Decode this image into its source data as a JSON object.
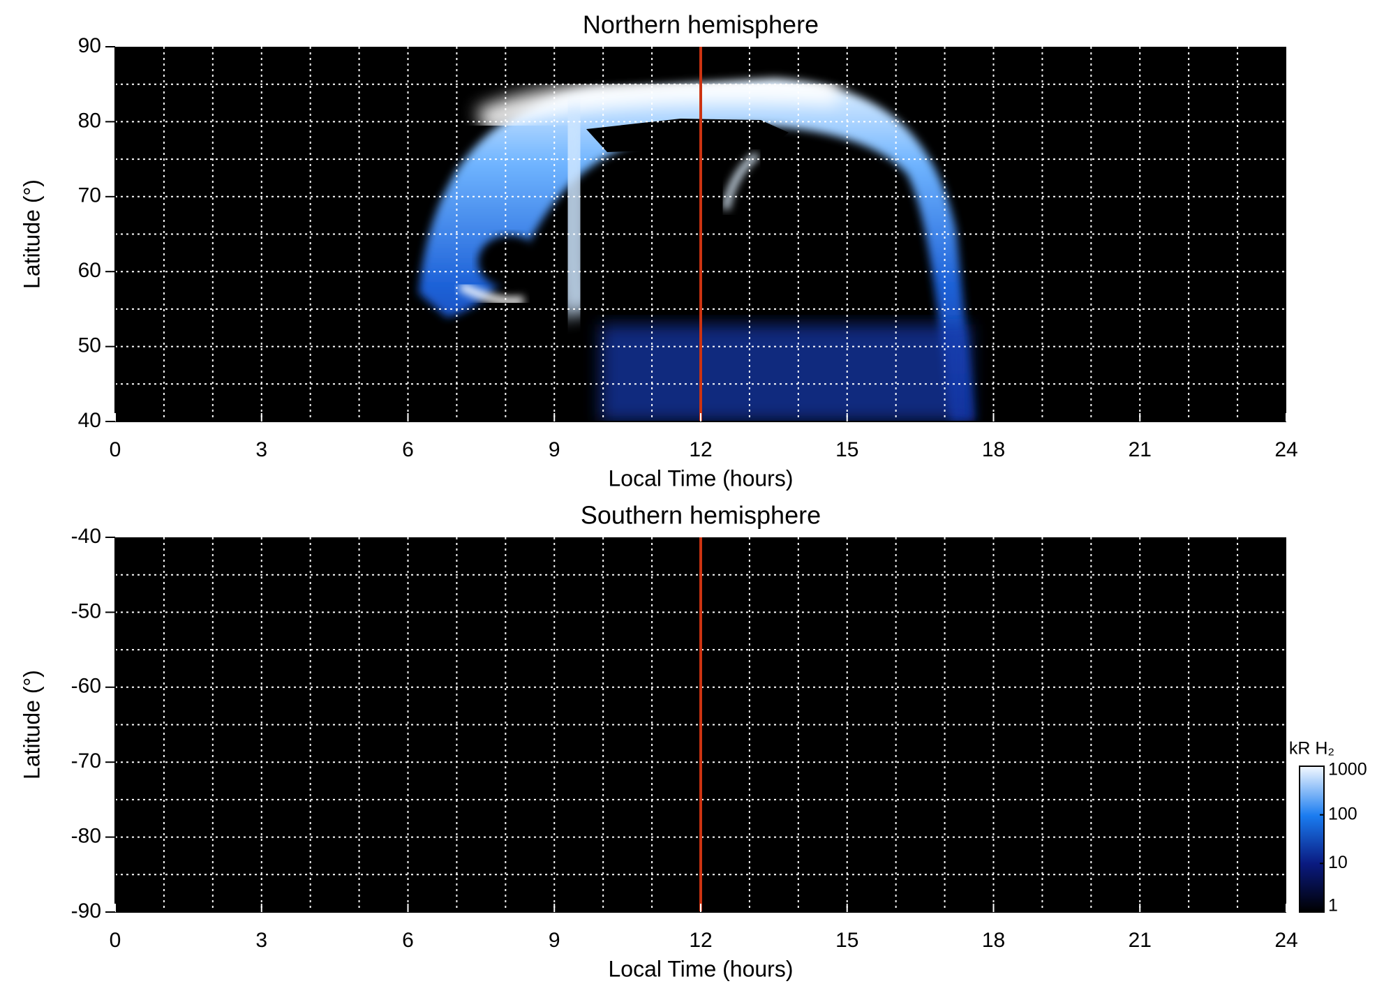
{
  "chart_data": [
    {
      "type": "heatmap",
      "title": "Northern hemisphere",
      "xlabel": "Local Time (hours)",
      "ylabel": "Latitude (°)",
      "xlim": [
        0,
        24
      ],
      "xticks": [
        0,
        3,
        6,
        9,
        12,
        15,
        18,
        21,
        24
      ],
      "ylim": [
        40,
        90
      ],
      "yticks": [
        40,
        50,
        60,
        70,
        80,
        90
      ],
      "xgrid": [
        1,
        2,
        3,
        4,
        5,
        6,
        7,
        8,
        9,
        10,
        11,
        12,
        13,
        14,
        15,
        16,
        17,
        18,
        19,
        20,
        21,
        22,
        23
      ],
      "ygrid": [
        45,
        50,
        55,
        60,
        65,
        70,
        75,
        80,
        85
      ],
      "grid": true,
      "vline": 12,
      "vline_color": "#cc3311"
    },
    {
      "type": "heatmap",
      "title": "Southern hemisphere",
      "xlabel": "Local Time (hours)",
      "ylabel": "Latitude (°)",
      "xlim": [
        0,
        24
      ],
      "xticks": [
        0,
        3,
        6,
        9,
        12,
        15,
        18,
        21,
        24
      ],
      "ylim": [
        -90,
        -40
      ],
      "yticks": [
        -90,
        -80,
        -70,
        -60,
        -50,
        -40
      ],
      "xgrid": [
        1,
        2,
        3,
        4,
        5,
        6,
        7,
        8,
        9,
        10,
        11,
        12,
        13,
        14,
        15,
        16,
        17,
        18,
        19,
        20,
        21,
        22,
        23
      ],
      "ygrid": [
        -85,
        -80,
        -75,
        -70,
        -65,
        -60,
        -55,
        -50,
        -45
      ],
      "grid": true,
      "vline": 12,
      "vline_color": "#cc3311",
      "colorbar": {
        "label": "kR H₂",
        "lim": [
          1,
          1000
        ],
        "ticks": [
          1,
          10,
          100,
          1000
        ],
        "log": true
      }
    }
  ]
}
